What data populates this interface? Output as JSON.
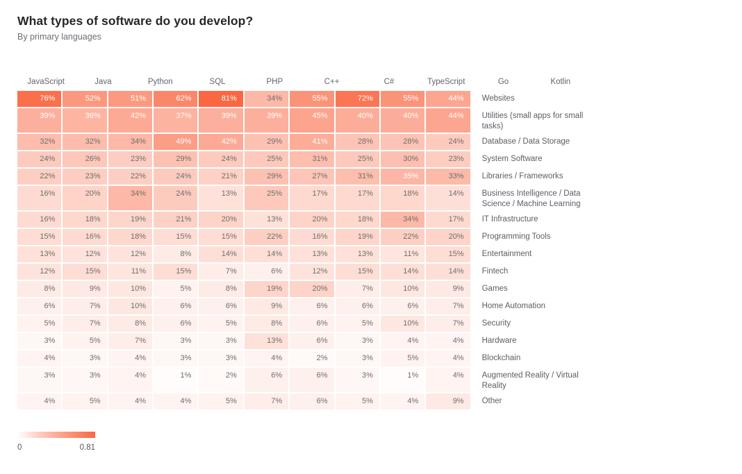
{
  "chart_data": {
    "type": "heatmap",
    "title": "What types of software do you develop?",
    "subtitle": "By primary languages",
    "columns": [
      "JavaScript",
      "Java",
      "Python",
      "SQL",
      "PHP",
      "C++",
      "C#",
      "TypeScript",
      "Go",
      "Kotlin"
    ],
    "rows": [
      "Websites",
      "Utilities (small apps for small tasks)",
      "Database / Data Storage",
      "System Software",
      "Libraries / Frameworks",
      "Business Intelligence / Data Science / Machine Learning",
      "IT Infrastructure",
      "Programming Tools",
      "Entertainment",
      "Fintech",
      "Games",
      "Home Automation",
      "Security",
      "Hardware",
      "Blockchain",
      "Augmented Reality / Virtual Reality",
      "Other"
    ],
    "values": [
      [
        76,
        52,
        51,
        62,
        81,
        34,
        55,
        72,
        55,
        44
      ],
      [
        39,
        36,
        42,
        37,
        39,
        39,
        45,
        40,
        40,
        44
      ],
      [
        32,
        32,
        34,
        49,
        42,
        29,
        41,
        28,
        28,
        24
      ],
      [
        24,
        26,
        23,
        29,
        24,
        25,
        31,
        25,
        30,
        23
      ],
      [
        22,
        23,
        22,
        24,
        21,
        29,
        27,
        31,
        35,
        33
      ],
      [
        16,
        20,
        34,
        24,
        13,
        25,
        17,
        17,
        18,
        14
      ],
      [
        16,
        18,
        19,
        21,
        20,
        13,
        20,
        18,
        34,
        17
      ],
      [
        15,
        16,
        18,
        15,
        15,
        22,
        16,
        19,
        22,
        20
      ],
      [
        13,
        12,
        12,
        8,
        14,
        14,
        13,
        13,
        11,
        15
      ],
      [
        12,
        15,
        11,
        15,
        7,
        6,
        12,
        15,
        14,
        14
      ],
      [
        8,
        9,
        10,
        5,
        8,
        19,
        20,
        7,
        10,
        9
      ],
      [
        6,
        7,
        10,
        6,
        6,
        9,
        6,
        6,
        6,
        7
      ],
      [
        5,
        7,
        8,
        6,
        5,
        8,
        6,
        5,
        10,
        7
      ],
      [
        3,
        5,
        7,
        3,
        3,
        13,
        6,
        3,
        4,
        4
      ],
      [
        4,
        3,
        4,
        3,
        3,
        4,
        2,
        3,
        5,
        4
      ],
      [
        3,
        3,
        4,
        1,
        2,
        6,
        6,
        3,
        1,
        4
      ],
      [
        4,
        5,
        4,
        4,
        5,
        7,
        6,
        5,
        4,
        9
      ]
    ],
    "value_suffix": "%",
    "scale_max": 81,
    "white_text_threshold": 35,
    "colors": {
      "color_min": "#ffffff",
      "color_max": "#fa6742",
      "cell_text_light": "#ffffff",
      "cell_text_dark": "#6e6e6e"
    },
    "colorbar": {
      "min_label": "0",
      "max_label": "0.81"
    }
  }
}
